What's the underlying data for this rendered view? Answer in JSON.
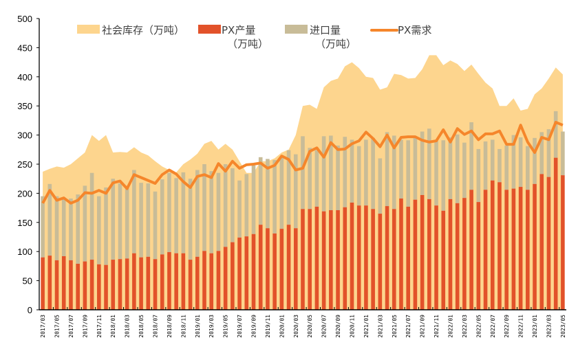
{
  "chart_data": {
    "type": "bar",
    "title": "",
    "xlabel": "",
    "ylabel": "",
    "ylim": [
      0,
      500
    ],
    "yticks": [
      0,
      50,
      100,
      150,
      200,
      250,
      300,
      350,
      400,
      450,
      500
    ],
    "grid": false,
    "legend_position": "top",
    "categories": [
      "2017/03",
      "2017/04",
      "2017/05",
      "2017/06",
      "2017/07",
      "2017/08",
      "2017/09",
      "2017/10",
      "2017/11",
      "2017/12",
      "2018/01",
      "2018/02",
      "2018/03",
      "2018/04",
      "2018/05",
      "2018/06",
      "2018/07",
      "2018/08",
      "2018/09",
      "2018/10",
      "2018/11",
      "2018/12",
      "2019/01",
      "2019/02",
      "2019/03",
      "2019/04",
      "2019/05",
      "2019/06",
      "2019/07",
      "2019/08",
      "2019/09",
      "2019/10",
      "2019/11",
      "2019/12",
      "2020/01",
      "2020/02",
      "2020/03",
      "2020/04",
      "2020/05",
      "2020/06",
      "2020/07",
      "2020/08",
      "2020/09",
      "2020/10",
      "2020/11",
      "2020/12",
      "2021/01",
      "2021/02",
      "2021/03",
      "2021/04",
      "2021/05",
      "2021/06",
      "2021/07",
      "2021/08",
      "2021/09",
      "2021/10",
      "2021/11",
      "2021/12",
      "2022/01",
      "2022/02",
      "2022/03",
      "2022/04",
      "2022/05",
      "2022/06",
      "2022/07",
      "2022/08",
      "2022/09",
      "2022/10",
      "2022/11",
      "2022/12",
      "2023/01",
      "2023/02",
      "2023/03",
      "2023/04",
      "2023/05"
    ],
    "series": [
      {
        "name": "社会库存（万吨）",
        "type": "area",
        "color": "#FDD58E",
        "values": [
          237,
          242,
          246,
          244,
          250,
          260,
          270,
          300,
          290,
          300,
          270,
          271,
          270,
          279,
          270,
          265,
          255,
          246,
          240,
          236,
          250,
          258,
          268,
          285,
          290,
          275,
          285,
          275,
          255,
          235,
          235,
          255,
          255,
          260,
          270,
          275,
          300,
          350,
          352,
          345,
          382,
          393,
          397,
          418,
          425,
          415,
          400,
          398,
          378,
          382,
          405,
          403,
          397,
          398,
          413,
          437,
          437,
          420,
          428,
          422,
          410,
          421,
          405,
          390,
          380,
          350,
          350,
          363,
          342,
          345,
          370,
          380,
          397,
          416,
          404
        ]
      },
      {
        "name": "PX产量（万吨）",
        "type": "bar",
        "stack": "supply",
        "color": "#E2522A",
        "values": [
          90,
          93,
          85,
          92,
          85,
          79,
          83,
          86,
          78,
          77,
          86,
          87,
          88,
          97,
          90,
          91,
          87,
          95,
          99,
          97,
          97,
          86,
          91,
          101,
          97,
          101,
          108,
          116,
          124,
          126,
          130,
          146,
          140,
          131,
          139,
          146,
          140,
          173,
          173,
          177,
          169,
          171,
          171,
          176,
          184,
          179,
          179,
          173,
          165,
          178,
          173,
          191,
          177,
          189,
          197,
          190,
          179,
          170,
          190,
          183,
          192,
          206,
          185,
          206,
          222,
          219,
          206,
          208,
          211,
          206,
          216,
          233,
          228,
          261,
          231
        ]
      },
      {
        "name": "进口量（万吨）",
        "type": "bar",
        "stack": "supply",
        "color": "#C8BC98",
        "values": [
          105,
          123,
          110,
          100,
          106,
          119,
          130,
          149,
          117,
          133,
          139,
          130,
          125,
          143,
          128,
          126,
          116,
          129,
          136,
          129,
          139,
          139,
          149,
          149,
          141,
          134,
          142,
          127,
          98,
          107,
          118,
          116,
          119,
          126,
          122,
          128,
          127,
          125,
          105,
          97,
          129,
          128,
          111,
          121,
          108,
          102,
          113,
          122,
          95,
          127,
          126,
          101,
          114,
          109,
          109,
          121,
          111,
          121,
          106,
          118,
          95,
          116,
          91,
          83,
          70,
          57,
          76,
          92,
          85,
          75,
          79,
          72,
          82,
          80,
          75
        ]
      },
      {
        "name": "PX需求",
        "type": "line",
        "color": "#F5862B",
        "values": [
          183,
          205,
          188,
          192,
          183,
          188,
          201,
          200,
          205,
          200,
          218,
          221,
          208,
          232,
          227,
          222,
          217,
          232,
          240,
          233,
          220,
          210,
          229,
          232,
          227,
          251,
          238,
          255,
          243,
          249,
          250,
          252,
          243,
          248,
          264,
          258,
          240,
          243,
          272,
          278,
          262,
          287,
          275,
          276,
          285,
          290,
          305,
          294,
          280,
          300,
          278,
          296,
          297,
          297,
          291,
          288,
          290,
          309,
          288,
          311,
          301,
          307,
          292,
          302,
          302,
          307,
          284,
          284,
          317,
          288,
          270,
          296,
          292,
          322,
          317
        ]
      }
    ]
  }
}
